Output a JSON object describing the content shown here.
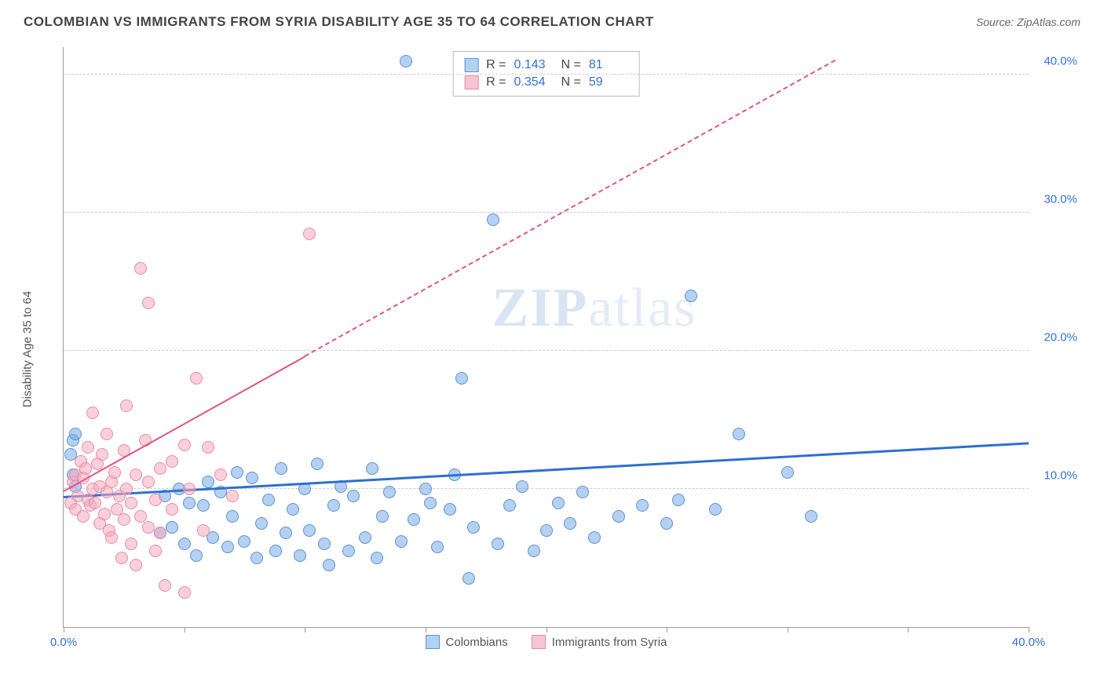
{
  "title": "COLOMBIAN VS IMMIGRANTS FROM SYRIA DISABILITY AGE 35 TO 64 CORRELATION CHART",
  "source_prefix": "Source: ",
  "source": "ZipAtlas.com",
  "y_axis_label": "Disability Age 35 to 64",
  "watermark_bold": "ZIP",
  "watermark_light": "atlas",
  "chart": {
    "type": "scatter",
    "xlim": [
      0,
      40
    ],
    "ylim": [
      0,
      42
    ],
    "y_ticks": [
      10,
      20,
      30,
      40
    ],
    "y_tick_labels": [
      "10.0%",
      "20.0%",
      "30.0%",
      "40.0%"
    ],
    "x_ticks": [
      0,
      5,
      10,
      15,
      20,
      25,
      30,
      35,
      40
    ],
    "x_tick_labels": {
      "0": "0.0%",
      "40": "40.0%"
    },
    "grid_color": "#cccccc",
    "background_color": "#ffffff",
    "point_radius": 8,
    "series": [
      {
        "name": "Colombians",
        "fill_color": "rgba(120, 170, 230, 0.55)",
        "stroke_color": "#5a94d6",
        "swatch_fill": "#b3d1f0",
        "swatch_border": "#5a94d6",
        "R": "0.143",
        "N": "81",
        "trend": {
          "x1": 0,
          "y1": 9.3,
          "x2": 40,
          "y2": 13.2,
          "color": "#2e6fd1",
          "width": 3,
          "dash": false,
          "dash_after_x": null
        },
        "points": [
          [
            0.3,
            12.5
          ],
          [
            0.4,
            11.0
          ],
          [
            0.4,
            13.5
          ],
          [
            0.5,
            14.0
          ],
          [
            0.5,
            10.2
          ],
          [
            4.0,
            6.8
          ],
          [
            4.2,
            9.5
          ],
          [
            4.5,
            7.2
          ],
          [
            4.8,
            10.0
          ],
          [
            5.0,
            6.0
          ],
          [
            5.2,
            9.0
          ],
          [
            5.5,
            5.2
          ],
          [
            5.8,
            8.8
          ],
          [
            6.0,
            10.5
          ],
          [
            6.2,
            6.5
          ],
          [
            6.5,
            9.8
          ],
          [
            6.8,
            5.8
          ],
          [
            7.0,
            8.0
          ],
          [
            7.2,
            11.2
          ],
          [
            7.5,
            6.2
          ],
          [
            7.8,
            10.8
          ],
          [
            8.0,
            5.0
          ],
          [
            8.2,
            7.5
          ],
          [
            8.5,
            9.2
          ],
          [
            8.8,
            5.5
          ],
          [
            9.0,
            11.5
          ],
          [
            9.2,
            6.8
          ],
          [
            9.5,
            8.5
          ],
          [
            9.8,
            5.2
          ],
          [
            10.0,
            10.0
          ],
          [
            10.2,
            7.0
          ],
          [
            10.5,
            11.8
          ],
          [
            10.8,
            6.0
          ],
          [
            11.0,
            4.5
          ],
          [
            11.2,
            8.8
          ],
          [
            11.5,
            10.2
          ],
          [
            11.8,
            5.5
          ],
          [
            12.0,
            9.5
          ],
          [
            12.5,
            6.5
          ],
          [
            12.8,
            11.5
          ],
          [
            13.0,
            5.0
          ],
          [
            13.2,
            8.0
          ],
          [
            13.5,
            9.8
          ],
          [
            14.0,
            6.2
          ],
          [
            14.2,
            41.0
          ],
          [
            14.5,
            7.8
          ],
          [
            15.0,
            10.0
          ],
          [
            15.2,
            9.0
          ],
          [
            15.5,
            5.8
          ],
          [
            16.0,
            8.5
          ],
          [
            16.2,
            11.0
          ],
          [
            16.5,
            18.0
          ],
          [
            16.8,
            3.5
          ],
          [
            17.0,
            7.2
          ],
          [
            17.8,
            29.5
          ],
          [
            18.0,
            6.0
          ],
          [
            18.5,
            8.8
          ],
          [
            19.0,
            10.2
          ],
          [
            19.5,
            5.5
          ],
          [
            20.0,
            7.0
          ],
          [
            20.5,
            9.0
          ],
          [
            21.0,
            7.5
          ],
          [
            21.5,
            9.8
          ],
          [
            22.0,
            6.5
          ],
          [
            23.0,
            8.0
          ],
          [
            24.0,
            8.8
          ],
          [
            25.0,
            7.5
          ],
          [
            25.5,
            9.2
          ],
          [
            26.0,
            24.0
          ],
          [
            27.0,
            8.5
          ],
          [
            28.0,
            14.0
          ],
          [
            30.0,
            11.2
          ],
          [
            31.0,
            8.0
          ]
        ]
      },
      {
        "name": "Immigrants from Syria",
        "fill_color": "rgba(245, 170, 190, 0.55)",
        "stroke_color": "#e88ca8",
        "swatch_fill": "#f5c5d3",
        "swatch_border": "#e88ca8",
        "R": "0.354",
        "N": "59",
        "trend": {
          "x1": 0,
          "y1": 9.8,
          "x2": 32,
          "y2": 41.0,
          "color": "#e05585",
          "width": 2.5,
          "dash": true,
          "dash_after_x": 10
        },
        "points": [
          [
            0.3,
            9.0
          ],
          [
            0.4,
            10.5
          ],
          [
            0.5,
            8.5
          ],
          [
            0.5,
            11.0
          ],
          [
            0.6,
            9.5
          ],
          [
            0.7,
            12.0
          ],
          [
            0.8,
            8.0
          ],
          [
            0.8,
            10.8
          ],
          [
            0.9,
            11.5
          ],
          [
            1.0,
            9.2
          ],
          [
            1.0,
            13.0
          ],
          [
            1.1,
            8.8
          ],
          [
            1.2,
            10.0
          ],
          [
            1.2,
            15.5
          ],
          [
            1.3,
            9.0
          ],
          [
            1.4,
            11.8
          ],
          [
            1.5,
            7.5
          ],
          [
            1.5,
            10.2
          ],
          [
            1.6,
            12.5
          ],
          [
            1.7,
            8.2
          ],
          [
            1.8,
            9.8
          ],
          [
            1.8,
            14.0
          ],
          [
            1.9,
            7.0
          ],
          [
            2.0,
            10.5
          ],
          [
            2.0,
            6.5
          ],
          [
            2.1,
            11.2
          ],
          [
            2.2,
            8.5
          ],
          [
            2.3,
            9.5
          ],
          [
            2.4,
            5.0
          ],
          [
            2.5,
            12.8
          ],
          [
            2.5,
            7.8
          ],
          [
            2.6,
            10.0
          ],
          [
            2.6,
            16.0
          ],
          [
            2.8,
            6.0
          ],
          [
            2.8,
            9.0
          ],
          [
            3.0,
            11.0
          ],
          [
            3.0,
            4.5
          ],
          [
            3.2,
            8.0
          ],
          [
            3.2,
            26.0
          ],
          [
            3.4,
            13.5
          ],
          [
            3.5,
            7.2
          ],
          [
            3.5,
            10.5
          ],
          [
            3.5,
            23.5
          ],
          [
            3.8,
            5.5
          ],
          [
            3.8,
            9.2
          ],
          [
            4.0,
            11.5
          ],
          [
            4.0,
            6.8
          ],
          [
            4.2,
            3.0
          ],
          [
            4.5,
            8.5
          ],
          [
            4.5,
            12.0
          ],
          [
            5.0,
            13.2
          ],
          [
            5.0,
            2.5
          ],
          [
            5.2,
            10.0
          ],
          [
            5.5,
            18.0
          ],
          [
            5.8,
            7.0
          ],
          [
            6.0,
            13.0
          ],
          [
            6.5,
            11.0
          ],
          [
            7.0,
            9.5
          ],
          [
            10.2,
            28.5
          ]
        ]
      }
    ]
  },
  "stats_labels": {
    "R": "R  =",
    "N": "N  ="
  }
}
